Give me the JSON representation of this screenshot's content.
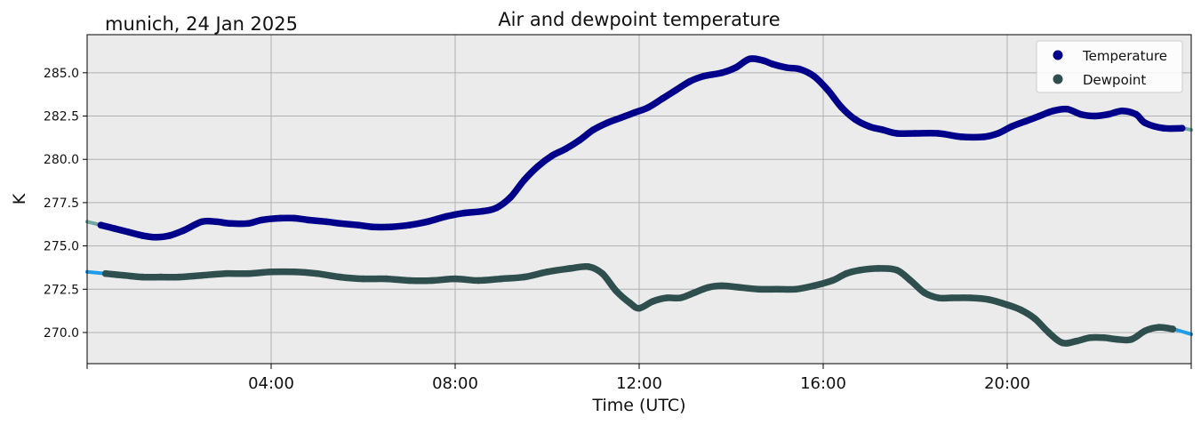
{
  "chart_data": {
    "type": "line",
    "title": "Air and dewpoint temperature",
    "subtitle": "munich, 24 Jan 2025",
    "xlabel": "Time (UTC)",
    "ylabel": "K",
    "xlim": [
      0,
      24
    ],
    "ylim": [
      268.2,
      287.2
    ],
    "grid": true,
    "legend_position": "top-right",
    "x_tick_values": [
      4,
      8,
      12,
      16,
      20
    ],
    "x_tick_labels": [
      "04:00",
      "08:00",
      "12:00",
      "16:00",
      "20:00"
    ],
    "y_ticks": [
      "270.0",
      "272.5",
      "275.0",
      "277.5",
      "280.0",
      "282.5",
      "285.0"
    ],
    "series": [
      {
        "name": "Temperature",
        "color": "#00008b",
        "raw_color": "#6fa8a0",
        "points": [
          [
            0.0,
            276.4
          ],
          [
            0.3,
            276.2
          ],
          [
            0.6,
            276.0
          ],
          [
            0.9,
            275.8
          ],
          [
            1.2,
            275.6
          ],
          [
            1.5,
            275.5
          ],
          [
            1.8,
            275.6
          ],
          [
            2.1,
            275.9
          ],
          [
            2.5,
            276.4
          ],
          [
            2.8,
            276.4
          ],
          [
            3.1,
            276.3
          ],
          [
            3.5,
            276.3
          ],
          [
            3.8,
            276.5
          ],
          [
            4.2,
            276.6
          ],
          [
            4.5,
            276.6
          ],
          [
            4.8,
            276.5
          ],
          [
            5.2,
            276.4
          ],
          [
            5.5,
            276.3
          ],
          [
            5.9,
            276.2
          ],
          [
            6.2,
            276.1
          ],
          [
            6.6,
            276.1
          ],
          [
            7.0,
            276.2
          ],
          [
            7.4,
            276.4
          ],
          [
            7.8,
            276.7
          ],
          [
            8.2,
            276.9
          ],
          [
            8.6,
            277.0
          ],
          [
            8.9,
            277.2
          ],
          [
            9.2,
            277.8
          ],
          [
            9.5,
            278.8
          ],
          [
            9.8,
            279.6
          ],
          [
            10.1,
            280.2
          ],
          [
            10.4,
            280.6
          ],
          [
            10.7,
            281.1
          ],
          [
            11.0,
            281.7
          ],
          [
            11.3,
            282.1
          ],
          [
            11.6,
            282.4
          ],
          [
            11.9,
            282.7
          ],
          [
            12.2,
            283.0
          ],
          [
            12.5,
            283.5
          ],
          [
            12.8,
            284.0
          ],
          [
            13.1,
            284.5
          ],
          [
            13.4,
            284.8
          ],
          [
            13.8,
            285.0
          ],
          [
            14.1,
            285.3
          ],
          [
            14.4,
            285.8
          ],
          [
            14.7,
            285.7
          ],
          [
            14.9,
            285.5
          ],
          [
            15.2,
            285.3
          ],
          [
            15.5,
            285.2
          ],
          [
            15.8,
            284.8
          ],
          [
            16.1,
            284.0
          ],
          [
            16.4,
            283.0
          ],
          [
            16.7,
            282.3
          ],
          [
            17.0,
            281.9
          ],
          [
            17.3,
            281.7
          ],
          [
            17.6,
            281.5
          ],
          [
            18.0,
            281.5
          ],
          [
            18.5,
            281.5
          ],
          [
            19.0,
            281.3
          ],
          [
            19.5,
            281.3
          ],
          [
            19.8,
            281.5
          ],
          [
            20.1,
            281.9
          ],
          [
            20.4,
            282.2
          ],
          [
            20.7,
            282.5
          ],
          [
            21.0,
            282.8
          ],
          [
            21.3,
            282.9
          ],
          [
            21.6,
            282.6
          ],
          [
            21.9,
            282.5
          ],
          [
            22.2,
            282.6
          ],
          [
            22.5,
            282.8
          ],
          [
            22.8,
            282.6
          ],
          [
            23.0,
            282.1
          ],
          [
            23.4,
            281.8
          ],
          [
            23.8,
            281.8
          ],
          [
            24.0,
            281.7
          ]
        ]
      },
      {
        "name": "Dewpoint",
        "color": "#2f4f4f",
        "raw_color": "#1e9be9",
        "points": [
          [
            0.0,
            273.5
          ],
          [
            0.4,
            273.4
          ],
          [
            0.8,
            273.3
          ],
          [
            1.2,
            273.2
          ],
          [
            1.6,
            273.2
          ],
          [
            2.0,
            273.2
          ],
          [
            2.5,
            273.3
          ],
          [
            3.0,
            273.4
          ],
          [
            3.5,
            273.4
          ],
          [
            4.0,
            273.5
          ],
          [
            4.5,
            273.5
          ],
          [
            5.0,
            273.4
          ],
          [
            5.5,
            273.2
          ],
          [
            6.0,
            273.1
          ],
          [
            6.5,
            273.1
          ],
          [
            7.0,
            273.0
          ],
          [
            7.5,
            273.0
          ],
          [
            8.0,
            273.1
          ],
          [
            8.5,
            273.0
          ],
          [
            9.0,
            273.1
          ],
          [
            9.5,
            273.2
          ],
          [
            10.0,
            273.5
          ],
          [
            10.5,
            273.7
          ],
          [
            10.9,
            273.8
          ],
          [
            11.2,
            273.4
          ],
          [
            11.5,
            272.4
          ],
          [
            11.8,
            271.7
          ],
          [
            12.0,
            271.4
          ],
          [
            12.3,
            271.8
          ],
          [
            12.6,
            272.0
          ],
          [
            12.9,
            272.0
          ],
          [
            13.2,
            272.3
          ],
          [
            13.5,
            272.6
          ],
          [
            13.8,
            272.7
          ],
          [
            14.2,
            272.6
          ],
          [
            14.6,
            272.5
          ],
          [
            15.0,
            272.5
          ],
          [
            15.4,
            272.5
          ],
          [
            15.8,
            272.7
          ],
          [
            16.2,
            273.0
          ],
          [
            16.5,
            273.4
          ],
          [
            16.8,
            273.6
          ],
          [
            17.2,
            273.7
          ],
          [
            17.6,
            273.6
          ],
          [
            17.9,
            273.0
          ],
          [
            18.2,
            272.3
          ],
          [
            18.5,
            272.0
          ],
          [
            18.8,
            272.0
          ],
          [
            19.2,
            272.0
          ],
          [
            19.6,
            271.9
          ],
          [
            20.0,
            271.6
          ],
          [
            20.3,
            271.3
          ],
          [
            20.6,
            270.8
          ],
          [
            20.9,
            270.0
          ],
          [
            21.2,
            269.4
          ],
          [
            21.5,
            269.5
          ],
          [
            21.8,
            269.7
          ],
          [
            22.1,
            269.7
          ],
          [
            22.4,
            269.6
          ],
          [
            22.7,
            269.6
          ],
          [
            23.0,
            270.1
          ],
          [
            23.3,
            270.3
          ],
          [
            23.6,
            270.2
          ],
          [
            24.0,
            269.9
          ]
        ]
      }
    ]
  }
}
